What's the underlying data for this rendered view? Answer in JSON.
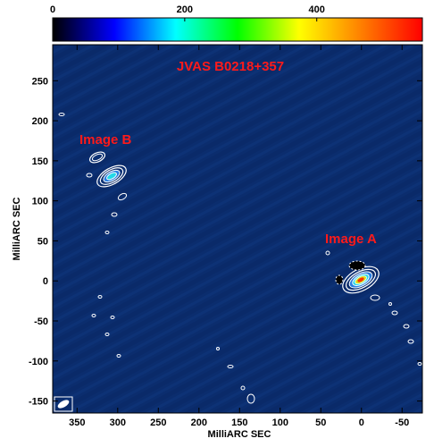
{
  "title": "JVAS B0218+357",
  "labels": {
    "image_a": "Image A",
    "image_b": "Image B"
  },
  "xlabel": "MilliARC SEC",
  "ylabel": "MilliARC SEC",
  "colorbar": {
    "ticks": [
      "0",
      "200",
      "400"
    ],
    "range": [
      0,
      560
    ],
    "colormap": [
      "#000000",
      "#0000ff",
      "#00ffff",
      "#00ff00",
      "#ffff00",
      "#ff8000",
      "#ff0000"
    ]
  },
  "x_axis": {
    "ticks": [
      "350",
      "300",
      "250",
      "200",
      "150",
      "100",
      "50",
      "0",
      "-50"
    ],
    "range": [
      380,
      -75
    ]
  },
  "y_axis": {
    "ticks": [
      "250",
      "200",
      "150",
      "100",
      "50",
      "0",
      "-50",
      "-100",
      "-150"
    ],
    "range": [
      -165,
      295
    ]
  },
  "colors": {
    "background_map": "#0b2d6e",
    "contour": "#ffffff",
    "annotation": "#ff1a1a"
  }
}
